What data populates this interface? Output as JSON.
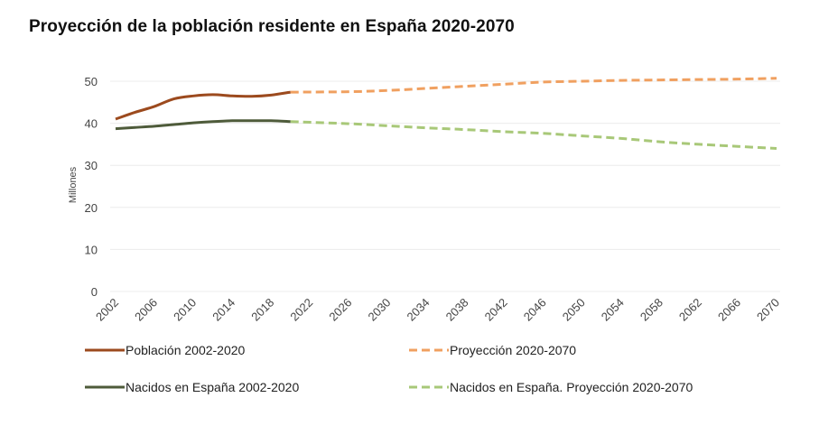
{
  "title": "Proyección de la población residente en España 2020-2070",
  "chart_data": {
    "type": "line",
    "title": "Proyección de la población residente en España 2020-2070",
    "xlabel": "",
    "ylabel": "Millones",
    "xlim": [
      2002,
      2070
    ],
    "ylim": [
      0,
      50
    ],
    "yticks": [
      0,
      10,
      20,
      30,
      40,
      50
    ],
    "xticks": [
      "2002",
      "2006",
      "2010",
      "2014",
      "2018",
      "2022",
      "2026",
      "2030",
      "2034",
      "2038",
      "2042",
      "2046",
      "2050",
      "2054",
      "2058",
      "2062",
      "2066",
      "2070"
    ],
    "grid": true,
    "legend_position": "bottom",
    "series": [
      {
        "name": "Población 2002-2020",
        "color": "#9c4a1e",
        "style": "solid",
        "x": [
          2002,
          2004,
          2006,
          2008,
          2010,
          2012,
          2014,
          2016,
          2018,
          2020
        ],
        "values": [
          41.0,
          42.6,
          44.0,
          45.8,
          46.5,
          46.8,
          46.5,
          46.4,
          46.7,
          47.4
        ]
      },
      {
        "name": "Proyección 2020-2070",
        "color": "#f0a060",
        "style": "dashed",
        "x": [
          2020,
          2026,
          2030,
          2034,
          2038,
          2042,
          2046,
          2050,
          2054,
          2058,
          2062,
          2066,
          2070
        ],
        "values": [
          47.4,
          47.5,
          47.8,
          48.3,
          48.8,
          49.3,
          49.8,
          50.0,
          50.2,
          50.3,
          50.4,
          50.5,
          50.7
        ]
      },
      {
        "name": "Nacidos en España 2002-2020",
        "color": "#4e5b3a",
        "style": "solid",
        "x": [
          2002,
          2004,
          2006,
          2008,
          2010,
          2012,
          2014,
          2016,
          2018,
          2020
        ],
        "values": [
          38.7,
          39.0,
          39.3,
          39.7,
          40.1,
          40.4,
          40.6,
          40.6,
          40.6,
          40.4
        ]
      },
      {
        "name": "Nacidos en España. Proyección 2020-2070",
        "color": "#a8c878",
        "style": "dashed",
        "x": [
          2020,
          2026,
          2030,
          2034,
          2038,
          2042,
          2046,
          2050,
          2054,
          2058,
          2062,
          2066,
          2070
        ],
        "values": [
          40.4,
          39.9,
          39.4,
          38.9,
          38.5,
          38.0,
          37.6,
          37.0,
          36.4,
          35.6,
          35.0,
          34.5,
          34.0
        ]
      }
    ]
  }
}
